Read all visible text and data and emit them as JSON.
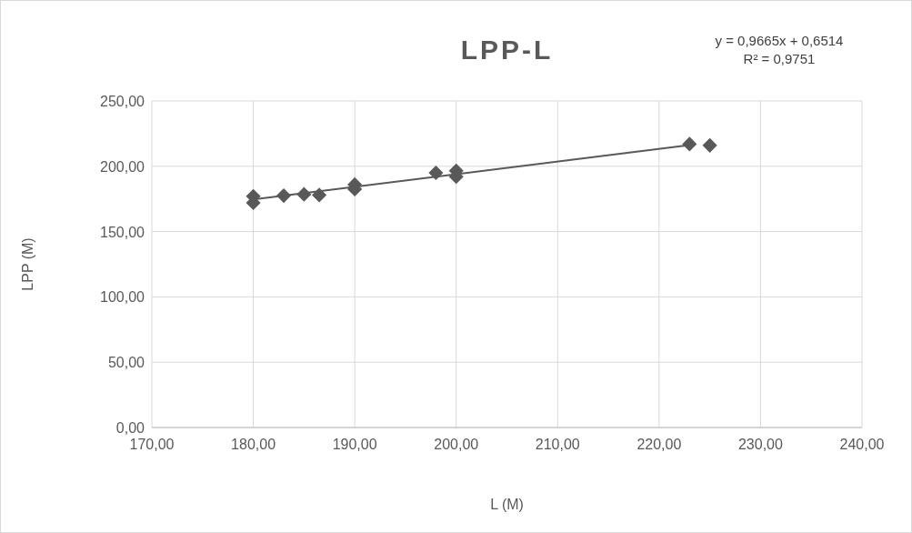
{
  "chart_data": {
    "type": "scatter",
    "title": "LPP-L",
    "xlabel": "L (M)",
    "ylabel": "LPP (M)",
    "annotations": [
      "y = 0,9665x + 0,6514",
      "R² = 0,9751"
    ],
    "xlim": [
      170,
      240
    ],
    "ylim": [
      0,
      250
    ],
    "xticks": [
      {
        "value": 170,
        "label": "170,00"
      },
      {
        "value": 180,
        "label": "180,00"
      },
      {
        "value": 190,
        "label": "190,00"
      },
      {
        "value": 200,
        "label": "200,00"
      },
      {
        "value": 210,
        "label": "210,00"
      },
      {
        "value": 220,
        "label": "220,00"
      },
      {
        "value": 230,
        "label": "230,00"
      },
      {
        "value": 240,
        "label": "240,00"
      }
    ],
    "yticks": [
      {
        "value": 0,
        "label": "0,00"
      },
      {
        "value": 50,
        "label": "50,00"
      },
      {
        "value": 100,
        "label": "100,00"
      },
      {
        "value": 150,
        "label": "150,00"
      },
      {
        "value": 200,
        "label": "200,00"
      },
      {
        "value": 250,
        "label": "250,00"
      }
    ],
    "grid": true,
    "marker": "diamond",
    "series": [
      {
        "color": "#595959",
        "x": [
          180,
          180,
          183,
          185,
          186.5,
          190,
          190,
          198,
          200,
          200,
          223,
          225
        ],
        "values": [
          177,
          172,
          177.5,
          178.5,
          178,
          186,
          182.5,
          195,
          196.5,
          192,
          217,
          216
        ]
      },
      {
        "type": "line",
        "color": "#595959",
        "x": [
          180,
          223
        ],
        "values": [
          174.6,
          216.2
        ],
        "marker": "none"
      }
    ]
  }
}
